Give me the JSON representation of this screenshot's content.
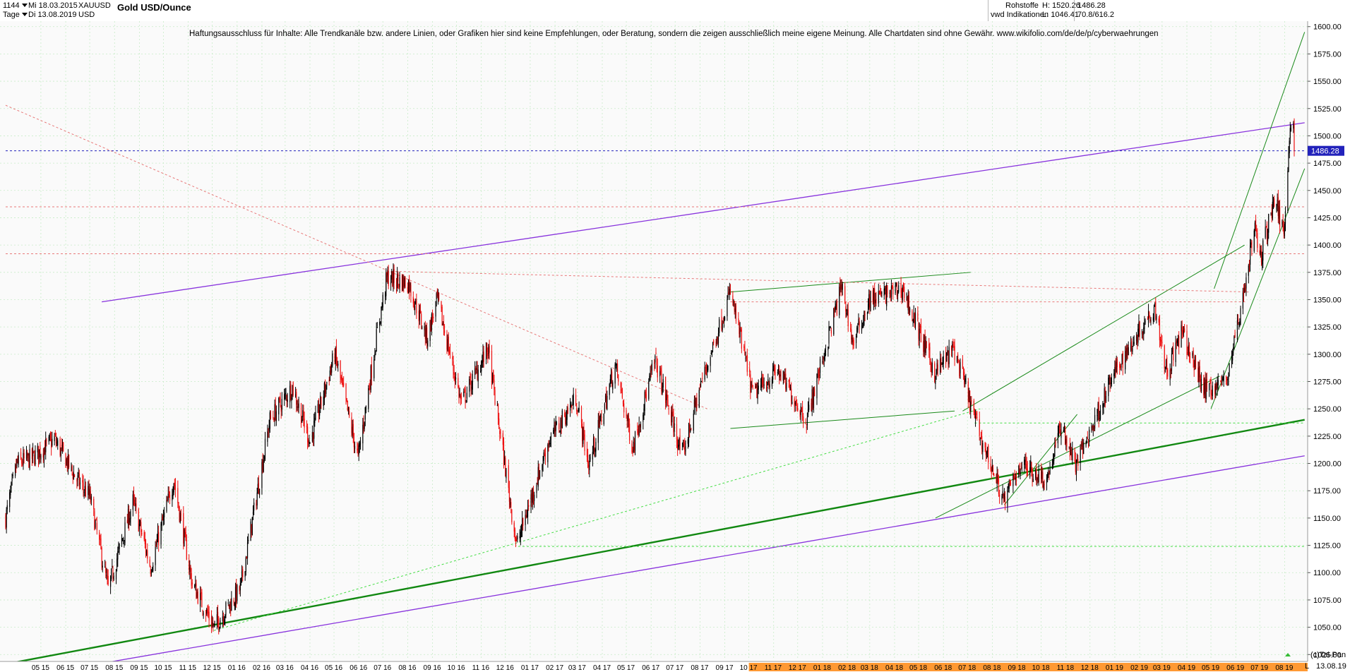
{
  "header": {
    "interval_value": "1144",
    "start_date": "Mi 18.03.2015",
    "symbol": "XAUUSD",
    "period_label": "Tage",
    "end_date": "Di 13.08.2019",
    "currency": "USD",
    "title": "Gold USD/Ounce",
    "category": "Rohstoffe",
    "source": "vwd Indikationen",
    "high_label": "H: 1520.26",
    "low_label": "L: 1046.41",
    "last_value": "1486.28",
    "extra_value": "70.8/616.2"
  },
  "disclaimer": "Haftungsausschluss für Inhalte: Alle Trendkanäle bzw. andere Linien, oder Grafiken hier sind keine Empfehlungen, oder Beratung, sondern die zeigen ausschließlich meine eigene Meinung. Alle Chartdaten sind ohne Gewähr.  www.wikifolio.com/de/de/p/cyberwaehrungen",
  "footer": {
    "copyright": "(c)Tai-Pan",
    "scale_flag": "L",
    "last_date": "13.08.19"
  },
  "colors": {
    "up_candle": "#000000",
    "down_candle": "#ee1111",
    "trend_green": "#1a8a1a",
    "trend_purple": "#8833dd",
    "dotted_red": "#e87878",
    "dotted_green": "#44dd44",
    "price_tag": "#2222bb",
    "time_bar": "#ff9933"
  },
  "chart_data": {
    "type": "candlestick",
    "title": "Gold USD/Ounce",
    "series": [
      {
        "name": "XAUUSD",
        "values": []
      }
    ],
    "ylim": [
      1020,
      1605
    ],
    "y_ticks": [
      1025,
      1050,
      1075,
      1100,
      1125,
      1150,
      1175,
      1200,
      1225,
      1250,
      1275,
      1300,
      1325,
      1350,
      1375,
      1400,
      1425,
      1450,
      1475,
      1500,
      1525,
      1550,
      1575,
      1600
    ],
    "current_price": 1486.28,
    "x_tick_labels": [
      "05 15",
      "06 15",
      "07 15",
      "08 15",
      "09 15",
      "10 15",
      "11 15",
      "12 15",
      "01 16",
      "02 16",
      "03 16",
      "04 16",
      "05 16",
      "06 16",
      "07 16",
      "08 16",
      "09 16",
      "10 16",
      "11 16",
      "12 16",
      "01 17",
      "02 17",
      "03 17",
      "04 17",
      "05 17",
      "06 17",
      "07 17",
      "08 17",
      "09 17",
      "10 17",
      "11 17",
      "12 17",
      "01 18",
      "02 18",
      "03 18",
      "04 18",
      "05 18",
      "06 18",
      "07 18",
      "08 18",
      "09 18",
      "10 18",
      "11 18",
      "12 18",
      "01 19",
      "02 19",
      "03 19",
      "04 19",
      "05 19",
      "06 19",
      "07 19",
      "08 19"
    ],
    "anchors": [
      [
        "2015-03-18",
        1150
      ],
      [
        "2015-04-01",
        1200
      ],
      [
        "2015-04-20",
        1205
      ],
      [
        "2015-05-18",
        1222
      ],
      [
        "2015-06-15",
        1185
      ],
      [
        "2015-07-01",
        1170
      ],
      [
        "2015-07-24",
        1085
      ],
      [
        "2015-08-24",
        1165
      ],
      [
        "2015-09-15",
        1105
      ],
      [
        "2015-10-14",
        1185
      ],
      [
        "2015-11-06",
        1090
      ],
      [
        "2015-12-03",
        1050
      ],
      [
        "2015-12-20",
        1068
      ],
      [
        "2016-01-05",
        1085
      ],
      [
        "2016-02-11",
        1240
      ],
      [
        "2016-03-10",
        1270
      ],
      [
        "2016-04-01",
        1220
      ],
      [
        "2016-05-02",
        1300
      ],
      [
        "2016-05-31",
        1205
      ],
      [
        "2016-06-24",
        1320
      ],
      [
        "2016-07-06",
        1370
      ],
      [
        "2016-08-02",
        1365
      ],
      [
        "2016-08-25",
        1315
      ],
      [
        "2016-09-07",
        1350
      ],
      [
        "2016-10-07",
        1255
      ],
      [
        "2016-11-09",
        1305
      ],
      [
        "2016-12-15",
        1125
      ],
      [
        "2017-01-24",
        1220
      ],
      [
        "2017-02-27",
        1260
      ],
      [
        "2017-03-15",
        1198
      ],
      [
        "2017-04-17",
        1290
      ],
      [
        "2017-05-09",
        1215
      ],
      [
        "2017-06-06",
        1295
      ],
      [
        "2017-07-10",
        1206
      ],
      [
        "2017-08-01",
        1270
      ],
      [
        "2017-09-08",
        1357
      ],
      [
        "2017-10-06",
        1263
      ],
      [
        "2017-11-06",
        1285
      ],
      [
        "2017-12-12",
        1240
      ],
      [
        "2018-01-25",
        1362
      ],
      [
        "2018-02-08",
        1310
      ],
      [
        "2018-03-01",
        1350
      ],
      [
        "2018-04-11",
        1360
      ],
      [
        "2018-05-21",
        1283
      ],
      [
        "2018-06-14",
        1305
      ],
      [
        "2018-07-17",
        1225
      ],
      [
        "2018-08-16",
        1165
      ],
      [
        "2018-09-05",
        1200
      ],
      [
        "2018-10-08",
        1185
      ],
      [
        "2018-10-26",
        1235
      ],
      [
        "2018-11-13",
        1198
      ],
      [
        "2018-12-31",
        1282
      ],
      [
        "2019-01-30",
        1320
      ],
      [
        "2019-02-20",
        1345
      ],
      [
        "2019-03-07",
        1283
      ],
      [
        "2019-03-25",
        1320
      ],
      [
        "2019-04-23",
        1268
      ],
      [
        "2019-05-20",
        1275
      ],
      [
        "2019-06-07",
        1340
      ],
      [
        "2019-06-25",
        1418
      ],
      [
        "2019-07-01",
        1386
      ],
      [
        "2019-07-19",
        1443
      ],
      [
        "2019-07-31",
        1412
      ],
      [
        "2019-08-07",
        1502
      ],
      [
        "2019-08-12",
        1512
      ],
      [
        "2019-08-13",
        1486.28
      ]
    ],
    "lines": [
      {
        "kind": "purple-solid",
        "from": [
          "2015-07-16",
          1348
        ],
        "to": [
          "2019-08-26",
          1512
        ]
      },
      {
        "kind": "purple-solid",
        "from": [
          "2014-12-15",
          990
        ],
        "to": [
          "2019-08-26",
          1207
        ]
      },
      {
        "kind": "green-thick",
        "from": [
          "2014-11-20",
          1000
        ],
        "to": [
          "2019-08-26",
          1240
        ]
      },
      {
        "kind": "green",
        "from": [
          "2017-09-08",
          1357
        ],
        "to": [
          "2018-07-05",
          1375
        ]
      },
      {
        "kind": "green",
        "from": [
          "2017-09-08",
          1232
        ],
        "to": [
          "2018-06-15",
          1248
        ]
      },
      {
        "kind": "green",
        "from": [
          "2018-06-25",
          1248
        ],
        "to": [
          "2019-06-12",
          1400
        ]
      },
      {
        "kind": "green",
        "from": [
          "2018-05-22",
          1150
        ],
        "to": [
          "2019-05-12",
          1280
        ]
      },
      {
        "kind": "green",
        "from": [
          "2018-08-16",
          1162
        ],
        "to": [
          "2018-11-15",
          1245
        ]
      },
      {
        "kind": "green",
        "from": [
          "2019-05-05",
          1360
        ],
        "to": [
          "2019-08-26",
          1595
        ]
      },
      {
        "kind": "green",
        "from": [
          "2019-05-01",
          1250
        ],
        "to": [
          "2019-08-26",
          1470
        ]
      },
      {
        "kind": "dotted-red",
        "from": [
          "2015-03-18",
          1528
        ],
        "to": [
          "2017-08-10",
          1250
        ]
      },
      {
        "kind": "dotted-red",
        "from": [
          "2016-07-06",
          1376
        ],
        "to": [
          "2019-06-17",
          1357
        ]
      },
      {
        "kind": "dotted-red",
        "from": [
          "2017-09-08",
          1348
        ],
        "to": [
          "2019-06-14",
          1348
        ]
      },
      {
        "kind": "dotted-red",
        "from": [
          "2015-03-18",
          1435
        ],
        "to": [
          "2019-08-26",
          1435
        ]
      },
      {
        "kind": "dotted-red",
        "from": [
          "2015-03-18",
          1392
        ],
        "to": [
          "2019-08-26",
          1392
        ]
      },
      {
        "kind": "dotted-green",
        "from": [
          "2015-12-03",
          1047
        ],
        "to": [
          "2018-07-17",
          1250
        ]
      },
      {
        "kind": "dotted-green",
        "from": [
          "2018-07-10",
          1237
        ],
        "to": [
          "2019-08-26",
          1237
        ]
      },
      {
        "kind": "dotted-green",
        "from": [
          "2016-12-17",
          1124
        ],
        "to": [
          "2019-08-26",
          1124
        ]
      },
      {
        "kind": "dotted-blue",
        "from": [
          "2015-03-18",
          1486.28
        ],
        "to": [
          "2019-08-26",
          1486.28
        ]
      }
    ]
  }
}
